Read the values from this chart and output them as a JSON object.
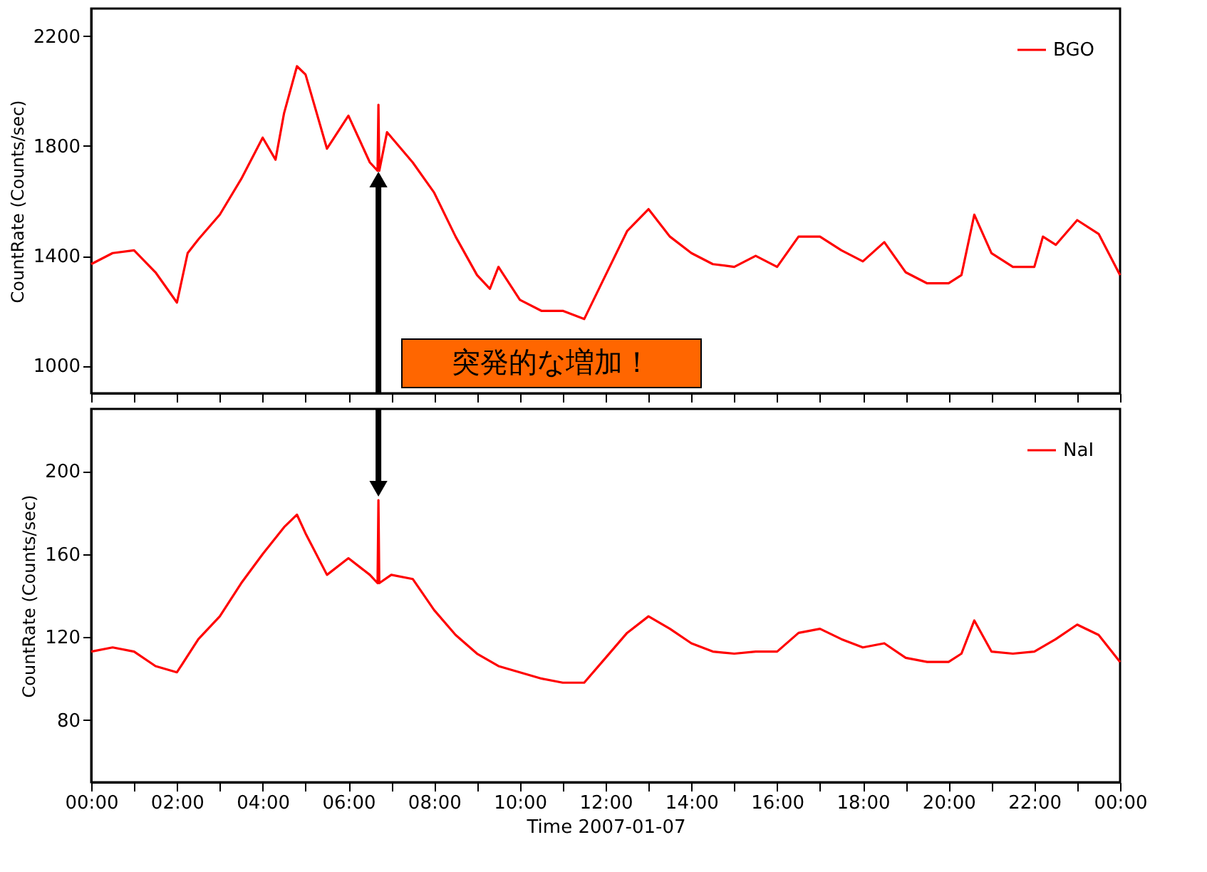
{
  "chart_data": [
    {
      "type": "line",
      "ylabel": "CountRate (Counts/sec)",
      "legend": "top right",
      "tick_labels": "y",
      "grid": false,
      "xlim": [
        0,
        24
      ],
      "xticks": [
        {
          "value": 0,
          "label": null
        },
        {
          "value": 1,
          "label": null
        },
        {
          "value": 2,
          "label": null
        },
        {
          "value": 3,
          "label": null
        },
        {
          "value": 4,
          "label": null
        },
        {
          "value": 5,
          "label": null
        },
        {
          "value": 6,
          "label": null
        },
        {
          "value": 7,
          "label": null
        },
        {
          "value": 8,
          "label": null
        },
        {
          "value": 9,
          "label": null
        },
        {
          "value": 10,
          "label": null
        },
        {
          "value": 11,
          "label": null
        },
        {
          "value": 12,
          "label": null
        },
        {
          "value": 13,
          "label": null
        },
        {
          "value": 14,
          "label": null
        },
        {
          "value": 15,
          "label": null
        },
        {
          "value": 16,
          "label": null
        },
        {
          "value": 17,
          "label": null
        },
        {
          "value": 18,
          "label": null
        },
        {
          "value": 19,
          "label": null
        },
        {
          "value": 20,
          "label": null
        },
        {
          "value": 21,
          "label": null
        },
        {
          "value": 22,
          "label": null
        },
        {
          "value": 23,
          "label": null
        },
        {
          "value": 24,
          "label": null
        }
      ],
      "ylim": [
        900,
        2300
      ],
      "yticks": [
        1000,
        1400,
        1800,
        2200
      ],
      "annotations": [
        "突発的な増加！"
      ],
      "series": [
        {
          "name": "BGO",
          "color": "#ff0000",
          "x": [
            0,
            0.5,
            1,
            1.5,
            2,
            2.25,
            2.5,
            3,
            3.5,
            4,
            4.3,
            4.5,
            4.8,
            5,
            5.5,
            6,
            6.5,
            6.68,
            6.7,
            6.72,
            6.9,
            7.5,
            8,
            8.5,
            9,
            9.3,
            9.5,
            10,
            10.5,
            11,
            11.5,
            12,
            12.5,
            13,
            13.5,
            14,
            14.5,
            15,
            15.5,
            16,
            16.5,
            17,
            17.5,
            18,
            18.5,
            19,
            19.5,
            20,
            20.3,
            20.6,
            21,
            21.5,
            22,
            22.2,
            22.5,
            23,
            23.5,
            24
          ],
          "values": [
            1370,
            1410,
            1420,
            1340,
            1230,
            1410,
            1460,
            1550,
            1680,
            1830,
            1750,
            1920,
            2090,
            2060,
            1790,
            1910,
            1740,
            1710,
            1950,
            1710,
            1850,
            1740,
            1630,
            1470,
            1330,
            1280,
            1360,
            1240,
            1200,
            1200,
            1170,
            1330,
            1490,
            1570,
            1470,
            1410,
            1370,
            1360,
            1400,
            1360,
            1470,
            1470,
            1420,
            1380,
            1450,
            1340,
            1300,
            1300,
            1330,
            1550,
            1410,
            1360,
            1360,
            1470,
            1440,
            1530,
            1480,
            1330
          ]
        }
      ]
    },
    {
      "type": "line",
      "xlabel": "Time 2007-01-07",
      "ylabel": "CountRate (Counts/sec)",
      "legend": "top right",
      "grid": false,
      "xlim": [
        0,
        24
      ],
      "xticks": [
        {
          "value": 0,
          "label": "00:00"
        },
        {
          "value": 1,
          "label": null
        },
        {
          "value": 2,
          "label": "02:00"
        },
        {
          "value": 3,
          "label": null
        },
        {
          "value": 4,
          "label": "04:00"
        },
        {
          "value": 5,
          "label": null
        },
        {
          "value": 6,
          "label": "06:00"
        },
        {
          "value": 7,
          "label": null
        },
        {
          "value": 8,
          "label": "08:00"
        },
        {
          "value": 9,
          "label": null
        },
        {
          "value": 10,
          "label": "10:00"
        },
        {
          "value": 11,
          "label": null
        },
        {
          "value": 12,
          "label": "12:00"
        },
        {
          "value": 13,
          "label": null
        },
        {
          "value": 14,
          "label": "14:00"
        },
        {
          "value": 15,
          "label": null
        },
        {
          "value": 16,
          "label": "16:00"
        },
        {
          "value": 17,
          "label": null
        },
        {
          "value": 18,
          "label": "18:00"
        },
        {
          "value": 19,
          "label": null
        },
        {
          "value": 20,
          "label": "20:00"
        },
        {
          "value": 21,
          "label": null
        },
        {
          "value": 22,
          "label": "22:00"
        },
        {
          "value": 23,
          "label": null
        },
        {
          "value": 24,
          "label": "00:00"
        }
      ],
      "ylim": [
        50,
        230
      ],
      "yticks": [
        80,
        120,
        160,
        200
      ],
      "series": [
        {
          "name": "NaI",
          "color": "#ff0000",
          "x": [
            0,
            0.5,
            1,
            1.5,
            2,
            2.5,
            3,
            3.5,
            4,
            4.5,
            4.8,
            5,
            5.5,
            6,
            6.5,
            6.68,
            6.7,
            6.72,
            7,
            7.5,
            8,
            8.5,
            9,
            9.5,
            10,
            10.5,
            11,
            11.5,
            12,
            12.5,
            13,
            13.5,
            14,
            14.5,
            15,
            15.5,
            16,
            16.5,
            17,
            17.5,
            18,
            18.5,
            19,
            19.5,
            20,
            20.3,
            20.6,
            21,
            21.5,
            22,
            22.5,
            23,
            23.5,
            24
          ],
          "values": [
            113,
            115,
            113,
            106,
            103,
            119,
            130,
            146,
            160,
            173,
            179,
            170,
            150,
            158,
            150,
            146,
            186,
            146,
            150,
            148,
            133,
            121,
            112,
            106,
            103,
            100,
            98,
            98,
            110,
            122,
            130,
            124,
            117,
            113,
            112,
            113,
            113,
            122,
            124,
            119,
            115,
            117,
            110,
            108,
            108,
            112,
            128,
            113,
            112,
            113,
            119,
            126,
            121,
            108
          ]
        }
      ]
    }
  ]
}
